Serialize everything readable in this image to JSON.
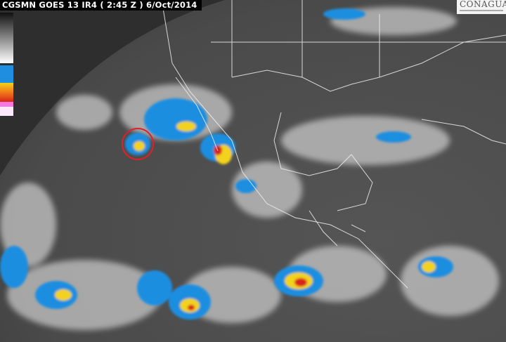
{
  "header": {
    "title": "CGSMN GOES 13 IR4 ( 2:45 Z ) 6/Oct/2014"
  },
  "logo": {
    "text": "CONAGUA"
  },
  "colors": {
    "background": "#4a4a4a",
    "cloud": "#e8e8e8",
    "cold_blue": "#1f8ee0",
    "yellow": "#f2d21a",
    "orange": "#f07a18",
    "red": "#d8241c",
    "pink": "#f07ae0",
    "marker": "#e0202a"
  },
  "scale": {
    "stops": [
      "black",
      "white",
      "blue",
      "yellow",
      "orange",
      "red",
      "pink"
    ]
  },
  "annotation": {
    "marker": "red-circle",
    "target": "tropical storm"
  }
}
